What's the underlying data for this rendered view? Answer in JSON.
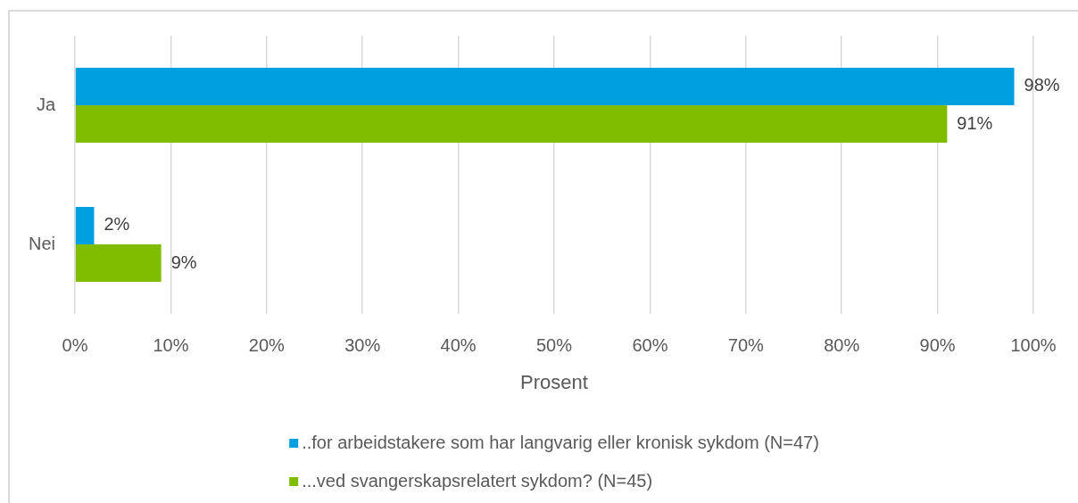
{
  "chart_data": {
    "type": "bar",
    "orientation": "horizontal",
    "categories": [
      "Ja",
      "Nei"
    ],
    "series": [
      {
        "name": "..for arbeidstakere som har langvarig eller kronisk sykdom (N=47)",
        "color": "#009fe0",
        "values": [
          98,
          2
        ],
        "value_labels": [
          "98%",
          "2%"
        ]
      },
      {
        "name": "...ved svangerskapsrelatert sykdom? (N=45)",
        "color": "#80bc00",
        "values": [
          91,
          9
        ],
        "value_labels": [
          "91%",
          "9%"
        ]
      }
    ],
    "xlabel": "Prosent",
    "xlim": [
      0,
      100
    ],
    "xticks": [
      {
        "value": 0,
        "label": "0%"
      },
      {
        "value": 10,
        "label": "10%"
      },
      {
        "value": 20,
        "label": "20%"
      },
      {
        "value": 30,
        "label": "30%"
      },
      {
        "value": 40,
        "label": "40%"
      },
      {
        "value": 50,
        "label": "50%"
      },
      {
        "value": 60,
        "label": "60%"
      },
      {
        "value": 70,
        "label": "70%"
      },
      {
        "value": 80,
        "label": "80%"
      },
      {
        "value": 90,
        "label": "90%"
      },
      {
        "value": 100,
        "label": "100%"
      }
    ],
    "grid": "x",
    "legend": "bottom"
  }
}
